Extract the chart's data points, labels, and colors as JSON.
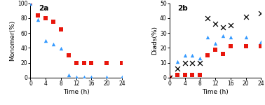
{
  "panel_a": {
    "label": "2a",
    "xlabel": "Time (h)",
    "ylabel": "Monomer(%)",
    "ylim": [
      0,
      100
    ],
    "xlim": [
      0,
      24
    ],
    "xticks": [
      0,
      4,
      8,
      12,
      16,
      20,
      24
    ],
    "yticks": [
      0,
      20,
      40,
      60,
      80,
      100
    ],
    "red_x": [
      0,
      2,
      4,
      6,
      8,
      10,
      12,
      14,
      16,
      20,
      24
    ],
    "red_y": [
      100,
      84,
      80,
      75,
      65,
      30,
      20,
      20,
      20,
      20,
      20
    ],
    "blue_x": [
      0,
      2,
      4,
      6,
      8,
      10,
      12,
      14,
      16,
      20,
      24
    ],
    "blue_y": [
      100,
      78,
      50,
      45,
      39,
      4,
      1,
      1,
      1,
      1,
      1
    ]
  },
  "panel_b": {
    "label": "2b",
    "xlabel": "Time (h)",
    "ylabel": "Diads(%)",
    "ylim": [
      0,
      50
    ],
    "xlim": [
      0,
      24
    ],
    "xticks": [
      0,
      4,
      8,
      12,
      16,
      20,
      24
    ],
    "yticks": [
      0,
      10,
      20,
      30,
      40,
      50
    ],
    "red_x": [
      0,
      2,
      4,
      6,
      8,
      10,
      12,
      14,
      16,
      20,
      24
    ],
    "red_y": [
      0,
      2,
      2,
      2,
      2,
      15,
      19,
      16,
      21,
      21,
      21
    ],
    "blue_x": [
      2,
      4,
      6,
      8,
      10,
      12,
      14,
      16,
      20,
      24
    ],
    "blue_y": [
      11,
      15,
      15,
      13,
      27,
      23,
      28,
      27,
      27,
      24
    ],
    "black_x": [
      0,
      2,
      4,
      6,
      8,
      10,
      12,
      14,
      16,
      20,
      24
    ],
    "black_y": [
      0,
      6,
      10,
      10,
      10,
      40,
      36,
      34,
      35,
      41,
      43
    ]
  },
  "red_color": "#e8160c",
  "blue_color": "#3399ff",
  "black_color": "#000000",
  "marker_size": 5,
  "x_marker_size": 7
}
